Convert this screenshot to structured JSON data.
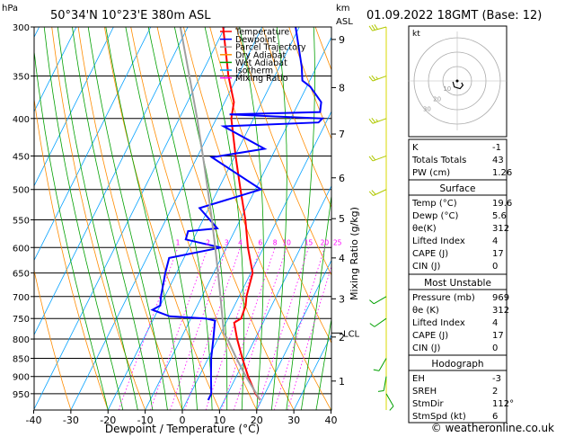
{
  "header": {
    "location": "50°34'N  10°23'E  380m  ASL",
    "datetime": "01.09.2022  18GMT  (Base: 12)",
    "pressure_unit": "hPa",
    "km_unit": "km",
    "asl_unit": "ASL"
  },
  "legend": [
    {
      "label": "Temperature",
      "color": "#ff0000"
    },
    {
      "label": "Dewpoint",
      "color": "#0000ff"
    },
    {
      "label": "Parcel Trajectory",
      "color": "#a0a0a0"
    },
    {
      "label": "Dry Adiabat",
      "color": "#ff8c00"
    },
    {
      "label": "Wet Adiabat",
      "color": "#00a000"
    },
    {
      "label": "Isotherm",
      "color": "#00a0ff"
    },
    {
      "label": "Mixing Ratio",
      "color": "#ff00ff"
    }
  ],
  "chart_data": {
    "type": "line",
    "xlabel": "Dewpoint / Temperature (°C)",
    "ylabel_right": "Mixing Ratio (g/kg)",
    "xlim": [
      -40,
      40
    ],
    "ylim_hpa": [
      1000,
      300
    ],
    "x_ticks": [
      "-40",
      "-30",
      "-20",
      "-10",
      "0",
      "10",
      "20",
      "30",
      "40"
    ],
    "pressure_levels": [
      "300",
      "350",
      "400",
      "450",
      "500",
      "550",
      "600",
      "650",
      "700",
      "750",
      "800",
      "850",
      "900",
      "950"
    ],
    "km_ticks": [
      {
        "km": "1",
        "p": 913
      },
      {
        "km": "2",
        "p": 795
      },
      {
        "km": "3",
        "p": 705
      },
      {
        "km": "4",
        "p": 620
      },
      {
        "km": "5",
        "p": 548
      },
      {
        "km": "6",
        "p": 482
      },
      {
        "km": "7",
        "p": 420
      },
      {
        "km": "8",
        "p": 363
      },
      {
        "km": "9",
        "p": 312
      }
    ],
    "lcl_label": "LCL",
    "lcl_p": 785,
    "mixing_ratio_labels": [
      "1",
      "2",
      "3",
      "4",
      "6",
      "8",
      "10",
      "15",
      "20",
      "25"
    ],
    "mixing_ratio_values": [
      1,
      2,
      3,
      4,
      6,
      8,
      10,
      15,
      20,
      25
    ],
    "series": [
      {
        "name": "Temperature",
        "color": "#ff0000",
        "points": [
          [
            969,
            19.6
          ],
          [
            950,
            17.5
          ],
          [
            900,
            13.2
          ],
          [
            850,
            9.2
          ],
          [
            800,
            5.2
          ],
          [
            760,
            2.2
          ],
          [
            750,
            3.5
          ],
          [
            720,
            3.0
          ],
          [
            700,
            2.0
          ],
          [
            650,
            0.5
          ],
          [
            600,
            -4.2
          ],
          [
            550,
            -8.6
          ],
          [
            500,
            -14.0
          ],
          [
            450,
            -19.8
          ],
          [
            400,
            -26.0
          ],
          [
            380,
            -27.5
          ],
          [
            350,
            -32.5
          ],
          [
            300,
            -40.5
          ]
        ]
      },
      {
        "name": "Dewpoint",
        "color": "#0000ff",
        "points": [
          [
            969,
            5.6
          ],
          [
            950,
            5.6
          ],
          [
            900,
            3.2
          ],
          [
            850,
            0.8
          ],
          [
            800,
            -1.2
          ],
          [
            760,
            -3.0
          ],
          [
            755,
            -3.2
          ],
          [
            750,
            -6.0
          ],
          [
            745,
            -16.0
          ],
          [
            730,
            -21.5
          ],
          [
            720,
            -20.0
          ],
          [
            700,
            -21.0
          ],
          [
            650,
            -23.0
          ],
          [
            620,
            -24.0
          ],
          [
            600,
            -11.5
          ],
          [
            585,
            -22.0
          ],
          [
            570,
            -22.5
          ],
          [
            565,
            -15.0
          ],
          [
            530,
            -22.5
          ],
          [
            500,
            -8.5
          ],
          [
            452,
            -26.0
          ],
          [
            440,
            -13.0
          ],
          [
            410,
            -27.0
          ],
          [
            405,
            -2.0
          ],
          [
            400,
            -1.5
          ],
          [
            395,
            -27.0
          ],
          [
            392,
            -3.0
          ],
          [
            380,
            -4.0
          ],
          [
            362,
            -9.0
          ],
          [
            355,
            -12.0
          ],
          [
            340,
            -14.0
          ],
          [
            300,
            -21.0
          ]
        ]
      },
      {
        "name": "Parcel Trajectory",
        "color": "#a0a0a0",
        "points": [
          [
            969,
            19.6
          ],
          [
            900,
            12.6
          ],
          [
            850,
            7.6
          ],
          [
            800,
            2.6
          ],
          [
            785,
            0.8
          ],
          [
            750,
            -1.5
          ],
          [
            700,
            -5.0
          ],
          [
            650,
            -8.8
          ],
          [
            600,
            -13.0
          ],
          [
            550,
            -17.6
          ],
          [
            500,
            -22.8
          ],
          [
            450,
            -28.6
          ],
          [
            400,
            -35.2
          ],
          [
            350,
            -43.0
          ],
          [
            300,
            -52.0
          ]
        ]
      }
    ]
  },
  "hodograph": {
    "label": "kt",
    "rings": [
      "10",
      "20",
      "30"
    ],
    "wind_points": [
      [
        3,
        -2
      ],
      [
        4,
        -5
      ],
      [
        2,
        -9
      ],
      [
        -2,
        -7
      ],
      [
        -3,
        -1
      ]
    ]
  },
  "wind_barbs": [
    {
      "p": 300,
      "dir": 255,
      "spd": 30
    },
    {
      "p": 350,
      "dir": 250,
      "spd": 25
    },
    {
      "p": 400,
      "dir": 250,
      "spd": 25
    },
    {
      "p": 450,
      "dir": 250,
      "spd": 20
    },
    {
      "p": 500,
      "dir": 245,
      "spd": 20
    },
    {
      "p": 700,
      "dir": 240,
      "spd": 10
    },
    {
      "p": 750,
      "dir": 235,
      "spd": 10
    },
    {
      "p": 850,
      "dir": 210,
      "spd": 10
    },
    {
      "p": 900,
      "dir": 190,
      "spd": 10
    },
    {
      "p": 950,
      "dir": 150,
      "spd": 10
    }
  ],
  "indices_top": [
    {
      "label": "K",
      "value": "-1"
    },
    {
      "label": "Totals Totals",
      "value": "43"
    },
    {
      "label": "PW (cm)",
      "value": "1.26"
    }
  ],
  "surface": {
    "title": "Surface",
    "rows": [
      {
        "label": "Temp (°C)",
        "value": "19.6"
      },
      {
        "label": "Dewp (°C)",
        "value": "5.6"
      },
      {
        "label": "θe(K)",
        "value": "312"
      },
      {
        "label": "Lifted Index",
        "value": "4"
      },
      {
        "label": "CAPE (J)",
        "value": "17"
      },
      {
        "label": "CIN (J)",
        "value": "0"
      }
    ]
  },
  "most_unstable": {
    "title": "Most Unstable",
    "rows": [
      {
        "label": "Pressure (mb)",
        "value": "969"
      },
      {
        "label": "θe (K)",
        "value": "312"
      },
      {
        "label": "Lifted Index",
        "value": "4"
      },
      {
        "label": "CAPE (J)",
        "value": "17"
      },
      {
        "label": "CIN (J)",
        "value": "0"
      }
    ]
  },
  "hodograph_table": {
    "title": "Hodograph",
    "rows": [
      {
        "label": "EH",
        "value": "-3"
      },
      {
        "label": "SREH",
        "value": "2"
      },
      {
        "label": "StmDir",
        "value": "112°"
      },
      {
        "label": "StmSpd (kt)",
        "value": "6"
      }
    ]
  },
  "copyright": "© weatheronline.co.uk"
}
